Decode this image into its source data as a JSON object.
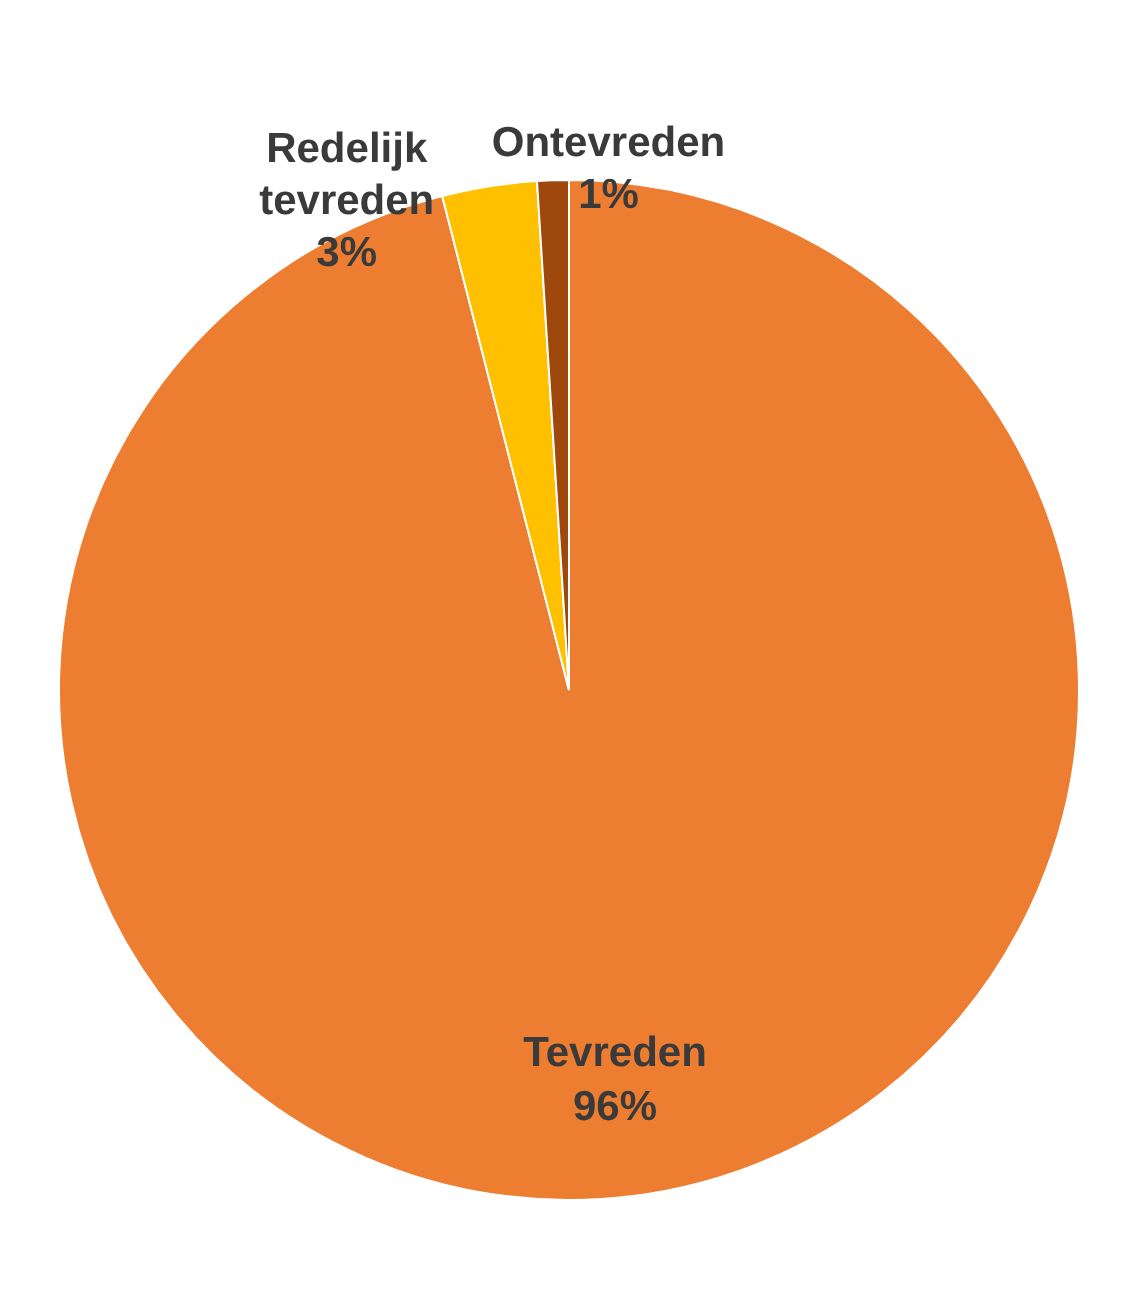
{
  "chart_data": {
    "type": "pie",
    "categories": [
      "Tevreden",
      "Redelijk tevreden",
      "Ontevreden"
    ],
    "values": [
      96,
      3,
      1
    ],
    "colors": [
      "#ed7d31",
      "#ffc000",
      "#9e480e"
    ],
    "value_labels": [
      "96%",
      "3%",
      "1%"
    ]
  }
}
